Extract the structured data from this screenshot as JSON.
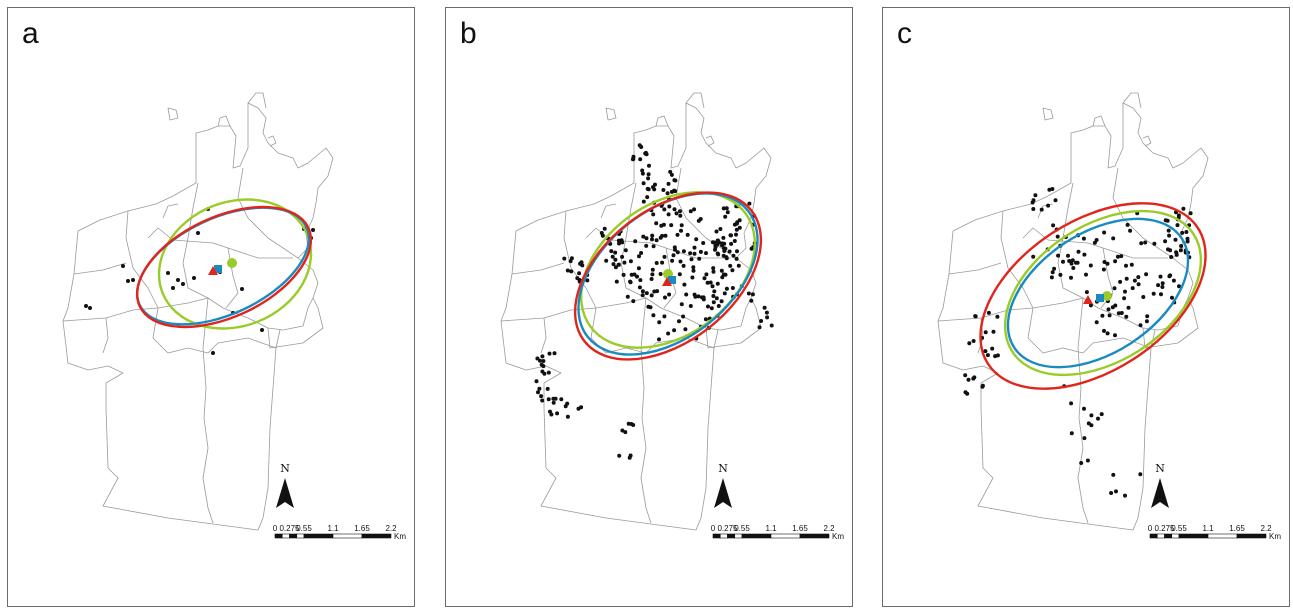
{
  "panels": [
    {
      "id": "a",
      "label": "a",
      "ellipse_colors": {
        "green": "#9acb2a",
        "blue": "#1b8bbf",
        "red": "#e0261c"
      },
      "ellipse_order": [
        "green",
        "blue",
        "red"
      ],
      "centers": [
        {
          "name": "green-circle",
          "shape": "circle",
          "color": "#9acb2a"
        },
        {
          "name": "blue-square",
          "shape": "square",
          "color": "#1b8bbf"
        },
        {
          "name": "red-triangle",
          "shape": "triangle",
          "color": "#e0261c"
        }
      ]
    },
    {
      "id": "b",
      "label": "b",
      "ellipse_colors": {
        "green": "#9acb2a",
        "blue": "#1b8bbf",
        "red": "#e0261c"
      },
      "ellipse_order": [
        "green",
        "blue",
        "red"
      ],
      "centers": [
        {
          "name": "green-circle",
          "shape": "circle",
          "color": "#9acb2a"
        },
        {
          "name": "blue-square",
          "shape": "square",
          "color": "#1b8bbf"
        },
        {
          "name": "red-triangle",
          "shape": "triangle",
          "color": "#e0261c"
        }
      ]
    },
    {
      "id": "c",
      "label": "c",
      "ellipse_colors": {
        "green": "#9acb2a",
        "blue": "#1b8bbf",
        "red": "#e0261c"
      },
      "ellipse_order": [
        "red",
        "green",
        "blue"
      ],
      "centers": [
        {
          "name": "green-circle",
          "shape": "circle",
          "color": "#9acb2a"
        },
        {
          "name": "blue-square",
          "shape": "square",
          "color": "#1b8bbf"
        },
        {
          "name": "red-triangle",
          "shape": "triangle",
          "color": "#e0261c"
        }
      ]
    }
  ],
  "north_arrow": {
    "label": "N"
  },
  "scale_bar": {
    "ticks": [
      "0",
      "0.275",
      "0.55",
      "1.1",
      "1.65",
      "2.2"
    ],
    "unit": "Km"
  },
  "colors": {
    "boundary": "#9a9a9a",
    "point": "#111111",
    "frame": "#6b6b6b"
  }
}
